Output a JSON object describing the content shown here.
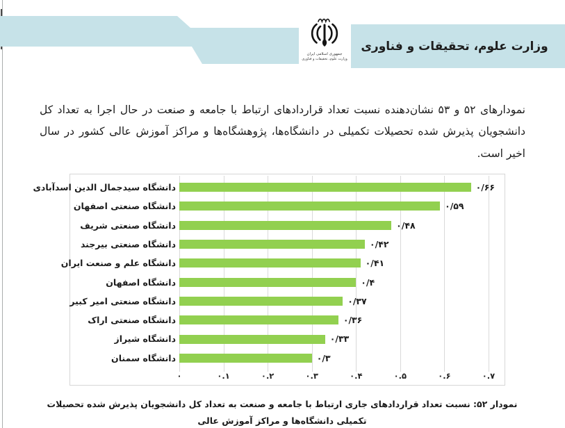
{
  "header": {
    "band_color": "#c6e2e8",
    "ministry_title": "وزارت علوم، تحقیقات و فناوری",
    "emblem_caption_line1": "جمهوری اسلامی ایران",
    "emblem_caption_line2": "وزارت علوم، تحقیقات و فناوری"
  },
  "intro_paragraph": "نمودارهای ۵۲ و ۵۳ نشان‌دهنده نسبت تعداد قراردادهای ارتباط با جامعه و صنعت در حال اجرا به تعداد کل دانشجویان پذیرش شده تحصیلات تکمیلی در دانشگاه‌ها، پژوهشگاه‌ها و مراکز آموزش عالی کشور در سال اخیر است.",
  "chart_data": {
    "type": "bar",
    "orientation": "horizontal",
    "title": "",
    "xlabel": "",
    "ylabel": "",
    "xlim": [
      0,
      0.7
    ],
    "grid": true,
    "legend": false,
    "bar_color": "#92d050",
    "x_tick_values": [
      0,
      0.1,
      0.2,
      0.3,
      0.4,
      0.5,
      0.6,
      0.7
    ],
    "x_tick_labels": [
      "۰",
      "۰.۱",
      "۰.۲",
      "۰.۳",
      "۰.۴",
      "۰.۵",
      "۰.۶",
      "۰.۷"
    ],
    "categories": [
      "دانشگاه سیدجمال الدین اسدآبادی",
      "دانشگاه صنعتی اصفهان",
      "دانشگاه صنعتی شریف",
      "دانشگاه صنعتی بیرجند",
      "دانشگاه علم و صنعت ایران",
      "دانشگاه اصفهان",
      "دانشگاه صنعتی امیر کبیر",
      "دانشگاه صنعتی اراک",
      "دانشگاه شیراز",
      "دانشگاه سمنان"
    ],
    "values": [
      0.66,
      0.59,
      0.48,
      0.42,
      0.41,
      0.4,
      0.37,
      0.36,
      0.33,
      0.3
    ],
    "value_labels": [
      "۰/۶۶",
      "۰/۵۹",
      "۰/۴۸",
      "۰/۴۲",
      "۰/۴۱",
      "۰/۴",
      "۰/۳۷",
      "۰/۳۶",
      "۰/۳۳",
      "۰/۳"
    ]
  },
  "chart_caption": "نمودار ۵۲: نسبت تعداد قراردادهای جاری ارتباط با جامعه و صنعت به تعداد کل دانشجویان پذیرش شده تحصیلات تکمیلی دانشگاه‌ها و مراکز آموزش عالی"
}
